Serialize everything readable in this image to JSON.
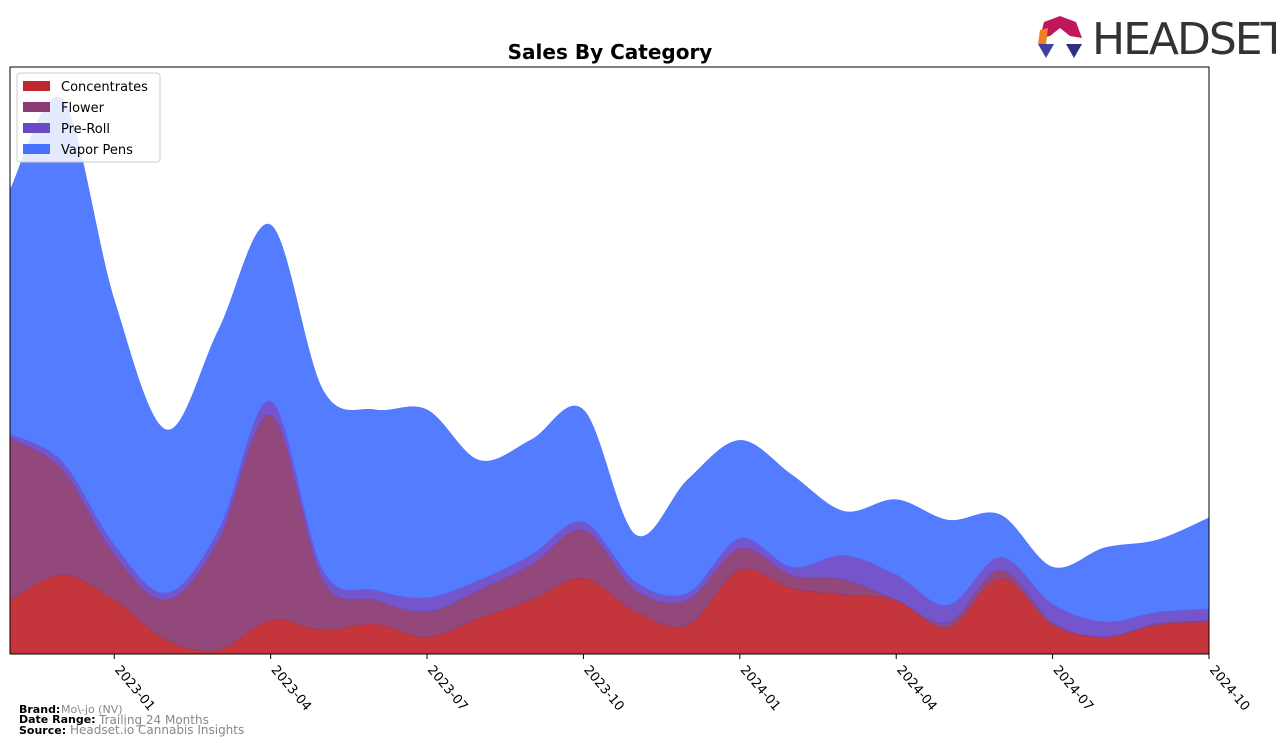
{
  "chart_data": {
    "type": "area",
    "stacked": true,
    "title": "Sales By Category",
    "x": [
      "2022-11",
      "2022-12",
      "2023-01",
      "2023-02",
      "2023-03",
      "2023-04",
      "2023-05",
      "2023-06",
      "2023-07",
      "2023-08",
      "2023-09",
      "2023-10",
      "2023-11",
      "2023-12",
      "2024-01",
      "2024-02",
      "2024-03",
      "2024-04",
      "2024-05",
      "2024-06",
      "2024-07",
      "2024-08",
      "2024-09",
      "2024-10"
    ],
    "xticks": [
      "2023-01",
      "2023-04",
      "2023-07",
      "2023-10",
      "2024-01",
      "2024-04",
      "2024-07",
      "2024-10"
    ],
    "ylim": [
      0,
      100
    ],
    "legend": "upper left",
    "series": [
      {
        "name": "Concentrates",
        "color": "#c0272d",
        "values": [
          9.2,
          13.5,
          9.2,
          2.4,
          0.7,
          5.8,
          4.1,
          5.1,
          2.9,
          6.1,
          9.2,
          12.9,
          7.2,
          4.9,
          14.3,
          11.2,
          10.1,
          9.2,
          4.4,
          12.9,
          4.9,
          2.9,
          4.9,
          5.5
        ]
      },
      {
        "name": "Flower",
        "color": "#8b3a72",
        "values": [
          27.6,
          17.9,
          7.7,
          6.8,
          18.7,
          34.9,
          8.5,
          4.1,
          4.3,
          4.8,
          6.0,
          8.2,
          3.7,
          4.3,
          3.7,
          2.2,
          2.6,
          0,
          1.0,
          1.4,
          0.5,
          0,
          0.3,
          0.2
        ]
      },
      {
        "name": "Pre-Roll",
        "color": "#6a48c8",
        "values": [
          0.7,
          1.4,
          1.7,
          1.2,
          1.7,
          2.4,
          1.7,
          1.7,
          2.4,
          1.7,
          1.7,
          1.4,
          1.4,
          1.2,
          1.7,
          1.4,
          4.1,
          4.3,
          2.9,
          2.2,
          3.1,
          2.6,
          1.9,
          2.0
        ]
      },
      {
        "name": "Vapor Pens",
        "color": "#4672ff",
        "values": [
          41.6,
          61.7,
          41.7,
          27.8,
          34.1,
          30.0,
          30.7,
          30.7,
          32.0,
          20.4,
          19.6,
          19.1,
          8.0,
          19.3,
          16.7,
          15.7,
          7.5,
          12.8,
          14.5,
          7.2,
          6.3,
          12.6,
          12.3,
          15.5
        ]
      }
    ]
  },
  "logo": "HEADSET",
  "footer": {
    "brand_label": "Brand:",
    "brand": "Mo\\-jo (NV)",
    "date_range_label": "Date Range:",
    "date_range": "Trailing 24 Months",
    "source_label": "Source:",
    "source": "Headset.io Cannabis Insights"
  }
}
